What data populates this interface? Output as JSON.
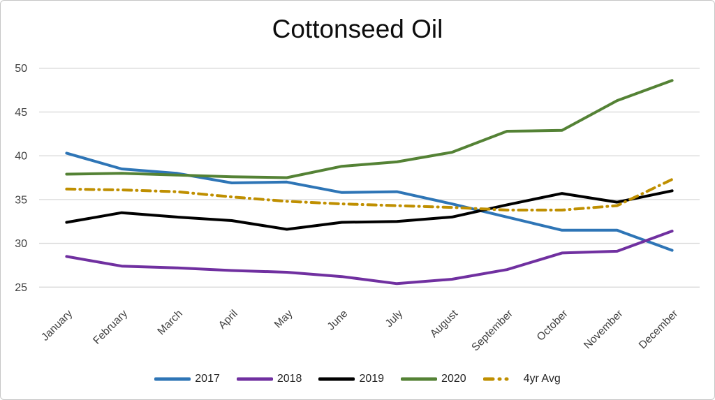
{
  "title": "Cottonseed Oil",
  "chart_data": {
    "type": "line",
    "title": "Cottonseed Oil",
    "categories": [
      "January",
      "February",
      "March",
      "April",
      "May",
      "June",
      "July",
      "August",
      "September",
      "October",
      "November",
      "December"
    ],
    "series": [
      {
        "name": "2017",
        "color": "#2E75B6",
        "style": "solid",
        "values": [
          40.3,
          38.5,
          38.0,
          36.9,
          37.0,
          35.8,
          35.9,
          34.5,
          33.0,
          31.5,
          31.5,
          29.2
        ]
      },
      {
        "name": "2018",
        "color": "#7030A0",
        "style": "solid",
        "values": [
          28.5,
          27.4,
          27.2,
          26.9,
          26.7,
          26.2,
          25.4,
          25.9,
          27.0,
          28.9,
          29.1,
          31.4
        ]
      },
      {
        "name": "2019",
        "color": "#000000",
        "style": "solid",
        "values": [
          32.4,
          33.5,
          33.0,
          32.6,
          31.6,
          32.4,
          32.5,
          33.0,
          34.4,
          35.7,
          34.7,
          36.0
        ]
      },
      {
        "name": "2020",
        "color": "#548235",
        "style": "solid",
        "values": [
          37.9,
          38.0,
          37.8,
          37.6,
          37.5,
          38.8,
          39.3,
          40.4,
          42.8,
          42.9,
          46.3,
          48.6
        ]
      },
      {
        "name": "4yr Avg",
        "color": "#BF8F00",
        "style": "dash-dot",
        "values": [
          36.2,
          36.1,
          35.9,
          35.3,
          34.8,
          34.5,
          34.3,
          34.1,
          33.8,
          33.8,
          34.3,
          37.3
        ]
      }
    ],
    "ylim": [
      25,
      50
    ],
    "yticks": [
      25,
      30,
      35,
      40,
      45,
      50
    ],
    "xlabel": "",
    "ylabel": "",
    "grid": "horizontal",
    "gridline_color": "#D9D9D9",
    "axis_label_color": "#404040",
    "legend_position": "bottom"
  }
}
